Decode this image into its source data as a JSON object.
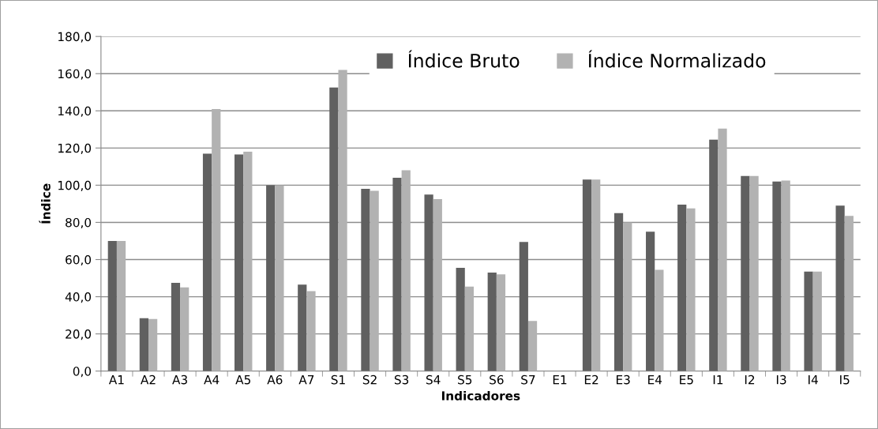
{
  "chart_data": {
    "type": "bar",
    "xlabel": "Indicadores",
    "ylabel": "Índice",
    "categories": [
      "A1",
      "A2",
      "A3",
      "A4",
      "A5",
      "A6",
      "A7",
      "S1",
      "S2",
      "S3",
      "S4",
      "S5",
      "S6",
      "S7",
      "E1",
      "E2",
      "E3",
      "E4",
      "E5",
      "I1",
      "I2",
      "I3",
      "I4",
      "I5"
    ],
    "series": [
      {
        "name": "Índice Bruto",
        "color": "#606060",
        "values": [
          70,
          28.5,
          47.5,
          117,
          116.5,
          100,
          46.5,
          152.5,
          98,
          104,
          95,
          55.5,
          53,
          69.5,
          null,
          103,
          85,
          75,
          89.5,
          124.5,
          105,
          102,
          53.5,
          89
        ]
      },
      {
        "name": "Índice Normalizado",
        "color": "#b2b2b2",
        "values": [
          70,
          28,
          45,
          141,
          118,
          100,
          43,
          162,
          97,
          108,
          92.5,
          45.5,
          52,
          27,
          null,
          103,
          80,
          54.5,
          87.5,
          130.5,
          105,
          102.5,
          53.5,
          83.5
        ]
      }
    ],
    "ylim": [
      0,
      180
    ],
    "yticks": [
      {
        "value": 0,
        "label": "0,0"
      },
      {
        "value": 20,
        "label": "20,0"
      },
      {
        "value": 40,
        "label": "40,0"
      },
      {
        "value": 60,
        "label": "60,0"
      },
      {
        "value": 80,
        "label": "80,0"
      },
      {
        "value": 100,
        "label": "100,0"
      },
      {
        "value": 120,
        "label": "120,0"
      },
      {
        "value": 140,
        "label": "140,0"
      },
      {
        "value": 160,
        "label": "160,0"
      },
      {
        "value": 180,
        "label": "180,0"
      }
    ],
    "grid": "y",
    "legend": "top"
  }
}
